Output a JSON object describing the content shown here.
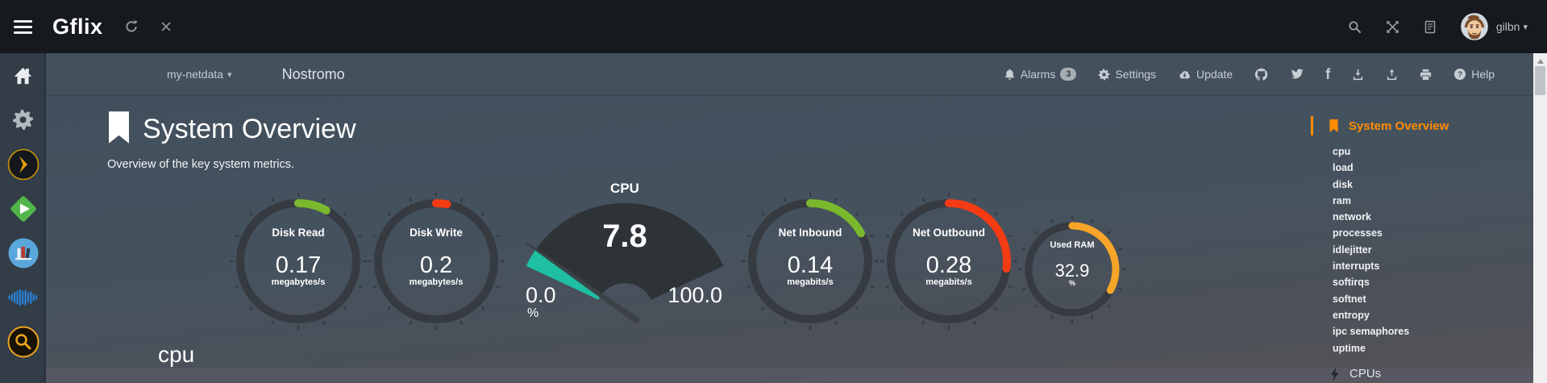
{
  "topbar": {
    "logo": "Gflix",
    "username": "gilbn",
    "icons": [
      "hamburger",
      "refresh",
      "close",
      "search",
      "fullscreen",
      "docs",
      "avatar",
      "caret-down"
    ]
  },
  "navbar": {
    "server": "my-netdata",
    "hostname": "Nostromo",
    "alarms_label": "Alarms",
    "alarms_count": "3",
    "settings_label": "Settings",
    "update_label": "Update",
    "help_label": "Help",
    "icon_buttons": [
      "github",
      "twitter",
      "facebook",
      "download",
      "upload",
      "print"
    ]
  },
  "sidebar": {
    "apps": [
      "home",
      "settings",
      "plex",
      "emby",
      "library",
      "music",
      "search"
    ]
  },
  "main": {
    "title": "System Overview",
    "subtitle": "Overview of the key system metrics.",
    "next_section_title": "cpu"
  },
  "toc": {
    "active_label": "System Overview",
    "items": [
      "cpu",
      "load",
      "disk",
      "ram",
      "network",
      "processes",
      "idlejitter",
      "interrupts",
      "softirqs",
      "softnet",
      "entropy",
      "ipc semaphores",
      "uptime"
    ],
    "subsection_label": "CPUs"
  },
  "chart_data": [
    {
      "type": "gauge",
      "variant": "ring",
      "title": "Disk Read",
      "value": 0.17,
      "unit": "megabytes/s",
      "percent": 8,
      "color": "#7ab82e"
    },
    {
      "type": "gauge",
      "variant": "ring",
      "title": "Disk Write",
      "value": 0.2,
      "unit": "megabytes/s",
      "percent": 3,
      "color": "#f43b14"
    },
    {
      "type": "gauge",
      "variant": "needle",
      "title": "CPU",
      "value": 7.8,
      "unit": "%",
      "min_label": "0.0",
      "max_label": "100.0",
      "range": [
        0,
        100
      ],
      "percent": 7.8,
      "color": "#1fbfa2"
    },
    {
      "type": "gauge",
      "variant": "ring",
      "title": "Net Inbound",
      "value": 0.14,
      "unit": "megabits/s",
      "percent": 17,
      "color": "#7ab82e"
    },
    {
      "type": "gauge",
      "variant": "ring",
      "title": "Net Outbound",
      "value": 0.28,
      "unit": "megabits/s",
      "percent": 27,
      "color": "#f43b14"
    },
    {
      "type": "gauge",
      "variant": "ring",
      "title": "Used RAM",
      "value": 32.9,
      "unit": "%",
      "percent": 33,
      "color": "#f7a529"
    }
  ],
  "colors": {
    "accent": "#ff8c00",
    "topbar": "#16191e",
    "navbar": "#44515d",
    "green": "#7ab82e",
    "red": "#f43b14",
    "ram_orange": "#f7a529",
    "cpu_teal": "#1fbfa2"
  }
}
